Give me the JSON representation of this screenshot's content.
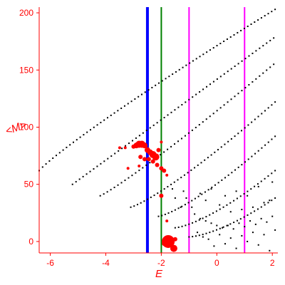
{
  "chart_data": {
    "type": "scatter",
    "title": "",
    "xlabel": "E",
    "ylabel": "<M>",
    "xlim": [
      -6.4,
      2.2
    ],
    "ylim": [
      -10,
      205
    ],
    "xticks": [
      -6,
      -4,
      -2,
      0,
      2
    ],
    "yticks": [
      0,
      50,
      100,
      150,
      200
    ],
    "xtick_labels": [
      "-6",
      "-4",
      "-2",
      "0",
      "2"
    ],
    "ytick_labels": [
      "0",
      "50",
      "100",
      "150",
      "200"
    ],
    "grid": false,
    "legend": "none",
    "colors": {
      "axis": "#ff0000",
      "points": "#000000",
      "highlight": "#ff0000",
      "line_blue": "#0000ff",
      "line_green": "#008000",
      "line_magenta": "#ff00ff"
    },
    "vertical_lines": [
      {
        "x": -2.5,
        "color": "#0000ff",
        "width": 4
      },
      {
        "x": -2.0,
        "color": "#008000",
        "width": 2
      },
      {
        "x": -1.0,
        "color": "#ff00ff",
        "width": 2
      },
      {
        "x": 1.0,
        "color": "#ff00ff",
        "width": 2
      }
    ],
    "bands": [
      {
        "x_start": -6.4,
        "x_end": 2.1,
        "y_start": 62,
        "y_end": 203,
        "n": 70,
        "curve": 0.9
      },
      {
        "x_start": -5.2,
        "x_end": 2.05,
        "y_start": 50,
        "y_end": 178,
        "n": 58,
        "curve": 1.0
      },
      {
        "x_start": -4.2,
        "x_end": 2.05,
        "y_start": 40,
        "y_end": 155,
        "n": 50,
        "curve": 1.1
      },
      {
        "x_start": -3.1,
        "x_end": 2.1,
        "y_start": 30,
        "y_end": 122,
        "n": 44,
        "curve": 1.2
      },
      {
        "x_start": -2.1,
        "x_end": 2.1,
        "y_start": 22,
        "y_end": 92,
        "n": 36,
        "curve": 1.3
      },
      {
        "x_start": -1.5,
        "x_end": 2.1,
        "y_start": 12,
        "y_end": 62,
        "n": 30,
        "curve": 1.4
      },
      {
        "x_start": -1.0,
        "x_end": 2.1,
        "y_start": 4,
        "y_end": 38,
        "n": 26,
        "curve": 1.5
      }
    ],
    "highlight_points": [
      {
        "x": -3.0,
        "y": 83,
        "s": 3
      },
      {
        "x": -2.9,
        "y": 84,
        "s": 4
      },
      {
        "x": -2.8,
        "y": 85,
        "s": 5
      },
      {
        "x": -2.7,
        "y": 85,
        "s": 5
      },
      {
        "x": -2.6,
        "y": 84,
        "s": 4
      },
      {
        "x": -2.5,
        "y": 80,
        "s": 4
      },
      {
        "x": -2.4,
        "y": 78,
        "s": 4
      },
      {
        "x": -2.3,
        "y": 76,
        "s": 5
      },
      {
        "x": -2.2,
        "y": 74,
        "s": 5
      },
      {
        "x": -2.1,
        "y": 80,
        "s": 3
      },
      {
        "x": -2.0,
        "y": 87,
        "s": 2
      },
      {
        "x": -3.3,
        "y": 82,
        "s": 2
      },
      {
        "x": -3.5,
        "y": 82,
        "s": 2
      },
      {
        "x": -2.75,
        "y": 74,
        "s": 3
      },
      {
        "x": -2.6,
        "y": 72,
        "s": 3
      },
      {
        "x": -2.45,
        "y": 72,
        "s": 3
      },
      {
        "x": -2.3,
        "y": 70,
        "s": 3
      },
      {
        "x": -2.15,
        "y": 67,
        "s": 3
      },
      {
        "x": -2.0,
        "y": 64,
        "s": 3
      },
      {
        "x": -1.9,
        "y": 62,
        "s": 3
      },
      {
        "x": -1.8,
        "y": 58,
        "s": 2
      },
      {
        "x": -2.8,
        "y": 66,
        "s": 2
      },
      {
        "x": -3.2,
        "y": 64,
        "s": 2
      },
      {
        "x": -2.0,
        "y": 40,
        "s": 3
      },
      {
        "x": -1.8,
        "y": 18,
        "s": 2
      },
      {
        "x": -1.75,
        "y": 0,
        "s": 9
      },
      {
        "x": -1.5,
        "y": 2,
        "s": 3
      },
      {
        "x": -1.55,
        "y": -6,
        "s": 5
      },
      {
        "x": -1.9,
        "y": -2,
        "s": 3
      }
    ],
    "scatter_points": [
      {
        "x": -0.9,
        "y": 30
      },
      {
        "x": -0.8,
        "y": 24
      },
      {
        "x": -0.6,
        "y": 20
      },
      {
        "x": -0.4,
        "y": 18
      },
      {
        "x": -0.2,
        "y": 16
      },
      {
        "x": 0.0,
        "y": 14
      },
      {
        "x": 0.2,
        "y": 12
      },
      {
        "x": 0.4,
        "y": 14
      },
      {
        "x": 0.6,
        "y": 11
      },
      {
        "x": 0.8,
        "y": 16
      },
      {
        "x": 1.0,
        "y": 13
      },
      {
        "x": 1.2,
        "y": 18
      },
      {
        "x": 1.4,
        "y": 15
      },
      {
        "x": 1.6,
        "y": 20
      },
      {
        "x": 1.8,
        "y": 17
      },
      {
        "x": 2.0,
        "y": 22
      },
      {
        "x": -0.7,
        "y": 8
      },
      {
        "x": -0.5,
        "y": 4
      },
      {
        "x": -0.3,
        "y": 2
      },
      {
        "x": -0.1,
        "y": -4
      },
      {
        "x": 0.1,
        "y": 6
      },
      {
        "x": 0.3,
        "y": -2
      },
      {
        "x": 0.5,
        "y": 3
      },
      {
        "x": 0.7,
        "y": -6
      },
      {
        "x": 0.9,
        "y": 5
      },
      {
        "x": 1.1,
        "y": 0
      },
      {
        "x": 1.3,
        "y": 8
      },
      {
        "x": 1.5,
        "y": -3
      },
      {
        "x": 1.7,
        "y": 6
      },
      {
        "x": 1.9,
        "y": -8
      },
      {
        "x": 2.1,
        "y": 10
      },
      {
        "x": -1.2,
        "y": 44
      },
      {
        "x": -1.1,
        "y": 38
      },
      {
        "x": -0.6,
        "y": 42
      },
      {
        "x": -0.4,
        "y": 36
      },
      {
        "x": 0.1,
        "y": 32
      },
      {
        "x": 0.5,
        "y": 26
      },
      {
        "x": 0.9,
        "y": 28
      },
      {
        "x": 1.3,
        "y": 30
      },
      {
        "x": 1.7,
        "y": 34
      },
      {
        "x": -1.6,
        "y": 46
      },
      {
        "x": -1.5,
        "y": 38
      },
      {
        "x": -1.3,
        "y": 30
      },
      {
        "x": -0.2,
        "y": 46
      },
      {
        "x": 0.3,
        "y": 40
      },
      {
        "x": 0.7,
        "y": 44
      },
      {
        "x": 1.1,
        "y": 40
      },
      {
        "x": 1.5,
        "y": 48
      },
      {
        "x": 1.9,
        "y": 36
      },
      {
        "x": 2.0,
        "y": 52
      }
    ]
  }
}
